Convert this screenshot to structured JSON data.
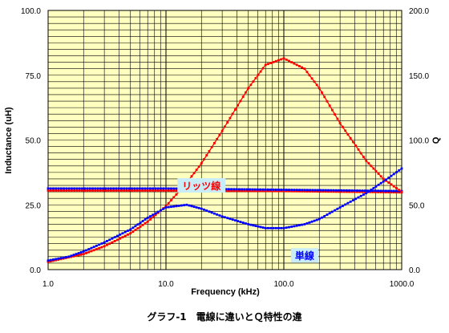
{
  "chart_data": {
    "type": "line",
    "caption": "グラフ-1　電線に違いとＱ特性の違",
    "x_axis": {
      "label": "Frequency (kHz)",
      "scale": "log",
      "range": [
        1.0,
        1000.0
      ],
      "ticks": [
        1.0,
        10.0,
        100.0,
        1000.0
      ],
      "tick_labels": [
        "1.0",
        "10.0",
        "100.0",
        "1000.0"
      ]
    },
    "y_axis_left": {
      "label": "Inductance (uH)",
      "range": [
        0,
        100
      ],
      "ticks": [
        0,
        25,
        50,
        75,
        100
      ],
      "tick_labels": [
        "0.0",
        "25.0",
        "50.0",
        "75.0",
        "100.0"
      ]
    },
    "y_axis_right": {
      "label": "Q",
      "range": [
        0,
        200
      ],
      "ticks": [
        0,
        50,
        100,
        150,
        200
      ],
      "tick_labels": [
        "0.0",
        "50.0",
        "100.0",
        "150.0",
        "200.0"
      ]
    },
    "grid": true,
    "colors": {
      "litz": "#ff0000",
      "single": "#0000ff",
      "plot_bg": "#ffffc0",
      "label_bg": "#c8ecf8"
    },
    "annotations": [
      {
        "text": "リッツ線",
        "color": "#ff0000",
        "anchor_x": 20,
        "anchor_y": 65
      },
      {
        "text": "単線",
        "color": "#0000ff",
        "anchor_x": 150,
        "anchor_y": 11
      }
    ],
    "series": [
      {
        "label": "リッツ線",
        "quantity": "inductance",
        "axis": "left",
        "color": "#ff0000",
        "x": [
          1,
          10,
          100,
          1000
        ],
        "y": [
          30.5,
          30.5,
          30.3,
          29.8
        ]
      },
      {
        "label": "単線",
        "quantity": "inductance",
        "axis": "left",
        "color": "#0000ff",
        "x": [
          1,
          10,
          100,
          1000
        ],
        "y": [
          31.3,
          31.3,
          30.8,
          30.3
        ]
      },
      {
        "label": "リッツ線",
        "quantity": "Q",
        "axis": "right",
        "color": "#ff0000",
        "x": [
          1,
          2,
          3,
          5,
          7,
          10,
          15,
          20,
          30,
          50,
          70,
          100,
          150,
          200,
          300,
          500,
          700,
          1000
        ],
        "y": [
          6,
          12,
          18,
          28,
          37,
          49,
          67,
          82,
          107,
          140,
          158,
          163,
          155,
          140,
          113,
          84,
          70,
          60
        ]
      },
      {
        "label": "単線",
        "quantity": "Q",
        "axis": "right",
        "color": "#0000ff",
        "x": [
          1,
          1.5,
          2,
          3,
          5,
          7,
          10,
          15,
          20,
          30,
          50,
          70,
          100,
          150,
          200,
          300,
          500,
          700,
          1000
        ],
        "y": [
          7,
          10,
          14,
          21,
          31,
          40,
          48,
          50,
          47,
          41,
          35,
          32,
          32,
          35,
          39,
          48,
          59,
          68,
          78
        ]
      }
    ]
  }
}
